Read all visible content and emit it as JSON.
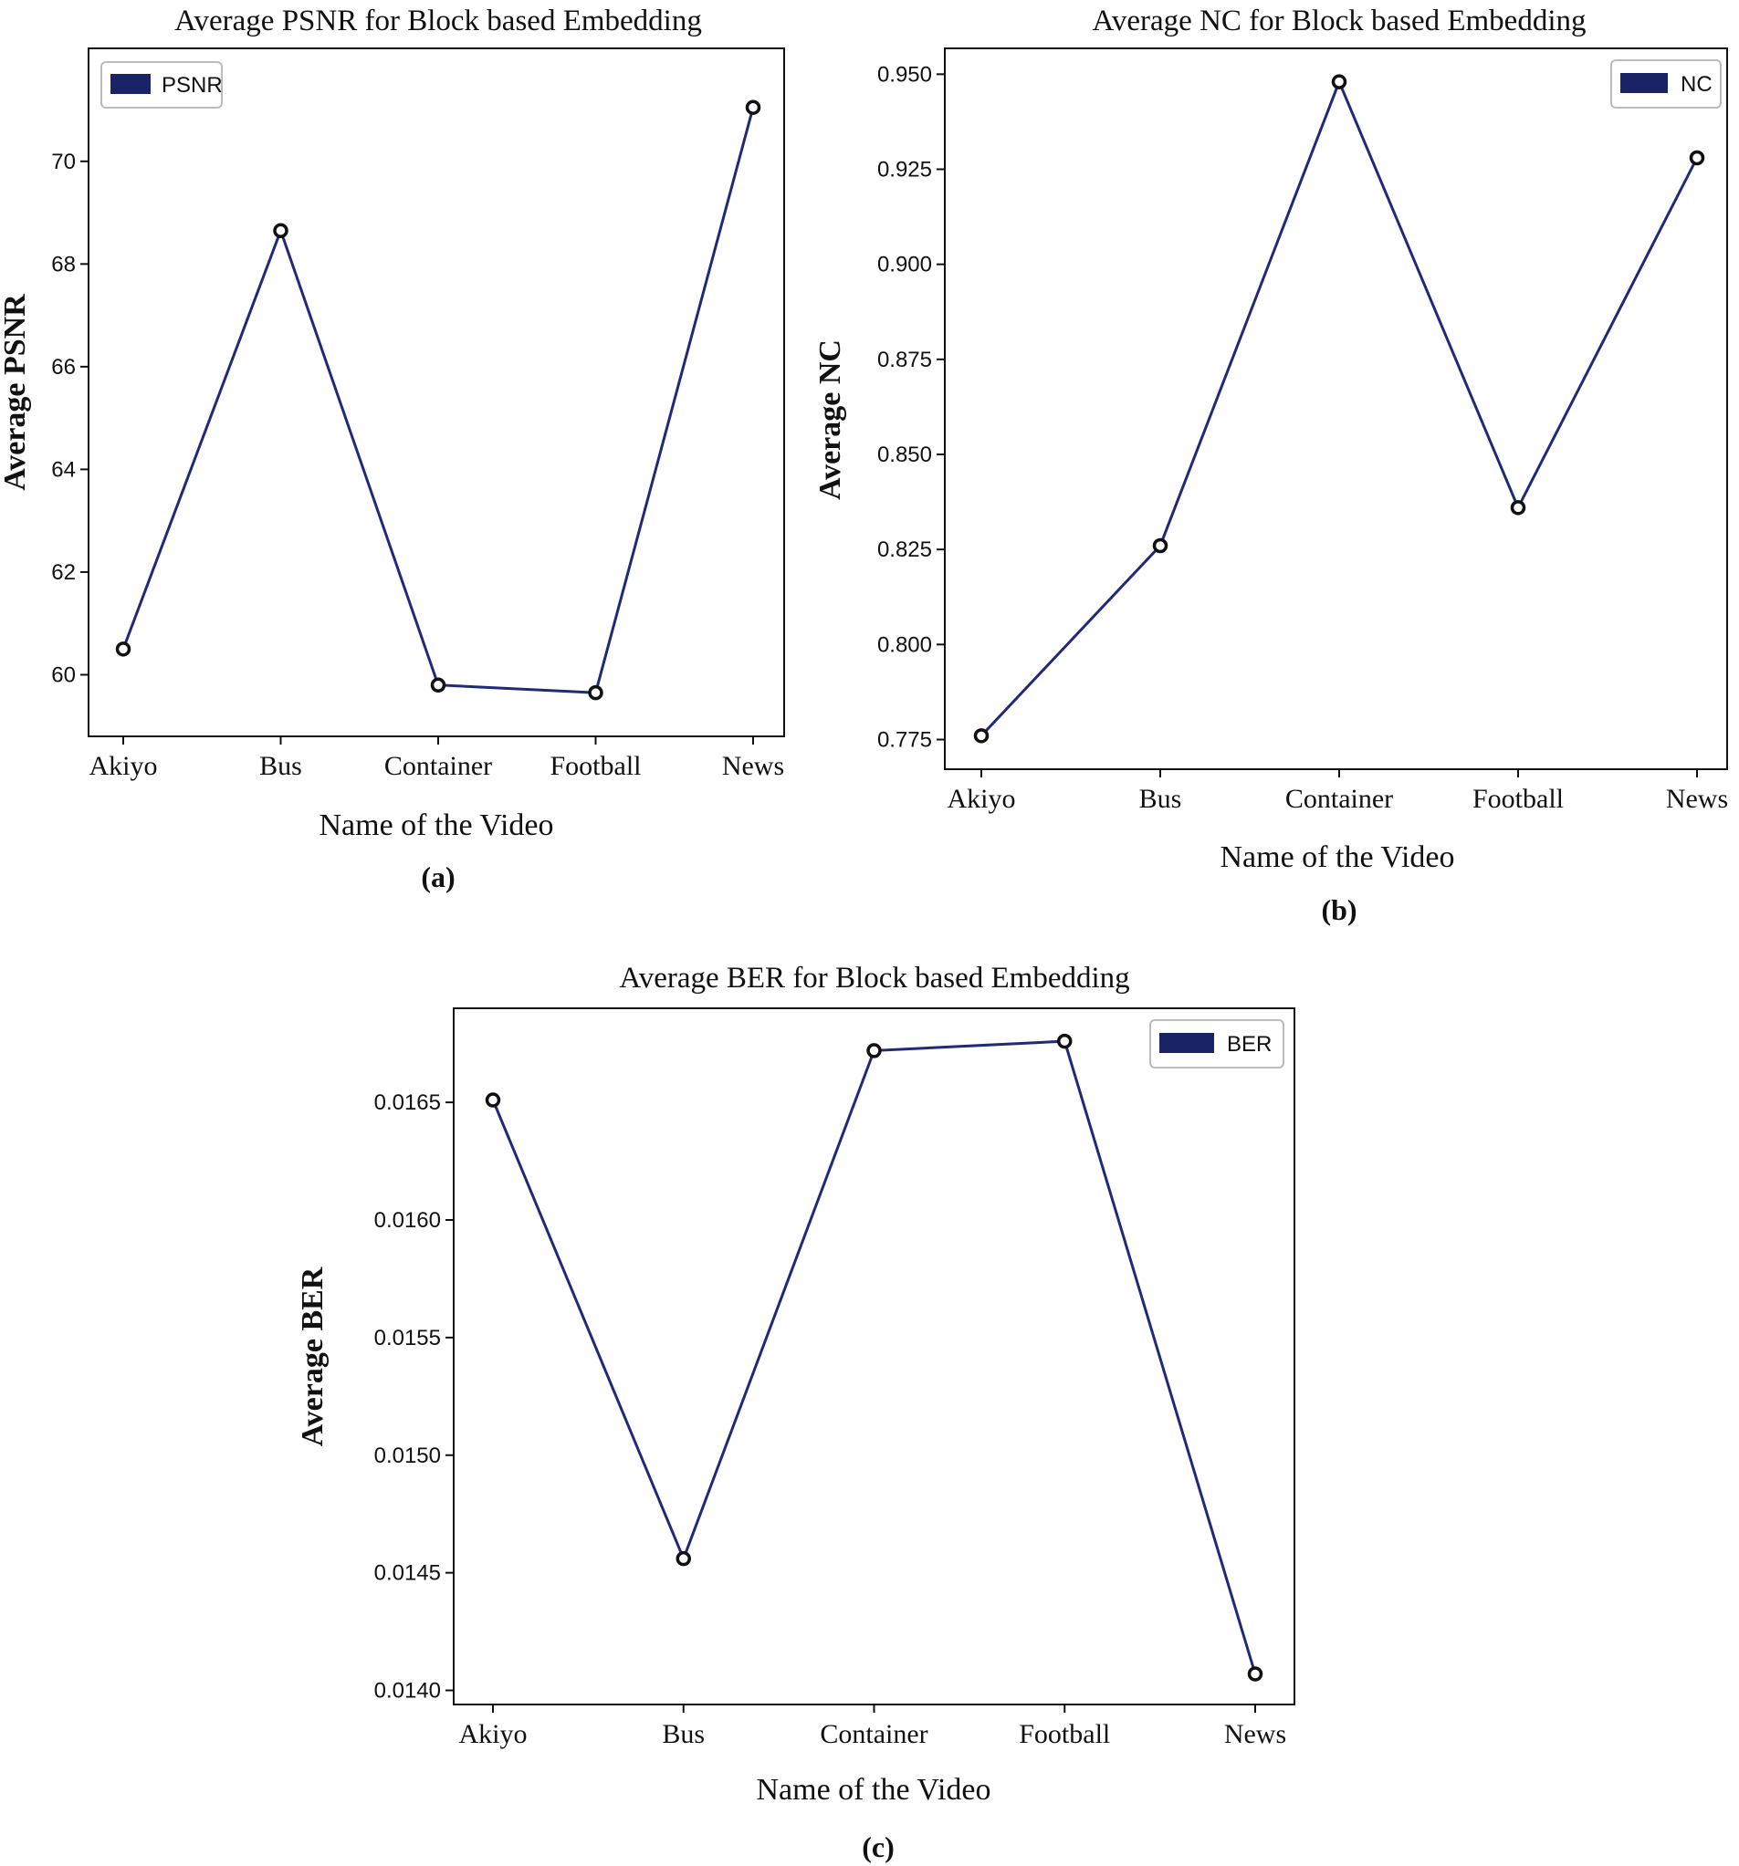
{
  "colors": {
    "line": "#1f2a78",
    "legend_swatch": "#1a2366",
    "marker_fill": "#ffffff",
    "marker_edge": "#111111"
  },
  "chart_data": [
    {
      "type": "line",
      "title": "Average PSNR for Block based Embedding",
      "xlabel": "Name of the Video",
      "ylabel": "Average PSNR",
      "caption": "(a)",
      "categories": [
        "Akiyo",
        "Bus",
        "Container",
        "Football",
        "News"
      ],
      "series": [
        {
          "name": "PSNR",
          "values": [
            60.5,
            68.65,
            59.8,
            59.65,
            71.05
          ]
        }
      ],
      "ylim": [
        58.8,
        72.2
      ],
      "yticks": [
        "60",
        "62",
        "64",
        "66",
        "68",
        "70"
      ],
      "legend": "top-left",
      "grid": false
    },
    {
      "type": "line",
      "title": "Average NC for Block based Embedding",
      "xlabel": "Name of the Video",
      "ylabel": "Average NC",
      "caption": "(b)",
      "categories": [
        "Akiyo",
        "Bus",
        "Container",
        "Football",
        "News"
      ],
      "series": [
        {
          "name": "NC",
          "values": [
            0.776,
            0.826,
            0.948,
            0.836,
            0.928
          ]
        }
      ],
      "ylim": [
        0.7672,
        0.9568
      ],
      "yticks": [
        "0.775",
        "0.800",
        "0.825",
        "0.850",
        "0.875",
        "0.900",
        "0.925",
        "0.950"
      ],
      "legend": "top-right",
      "grid": false
    },
    {
      "type": "line",
      "title": "Average BER for Block based Embedding",
      "xlabel": "Name of the Video",
      "ylabel": "Average BER",
      "caption": "(c)",
      "categories": [
        "Akiyo",
        "Bus",
        "Container",
        "Football",
        "News"
      ],
      "series": [
        {
          "name": "BER",
          "values": [
            0.01651,
            0.01456,
            0.01672,
            0.01676,
            0.01407
          ]
        }
      ],
      "ylim": [
        0.01394,
        0.0169
      ],
      "yticks": [
        "0.0140",
        "0.0145",
        "0.0150",
        "0.0155",
        "0.0160",
        "0.0165"
      ],
      "legend": "top-right",
      "grid": false
    }
  ]
}
